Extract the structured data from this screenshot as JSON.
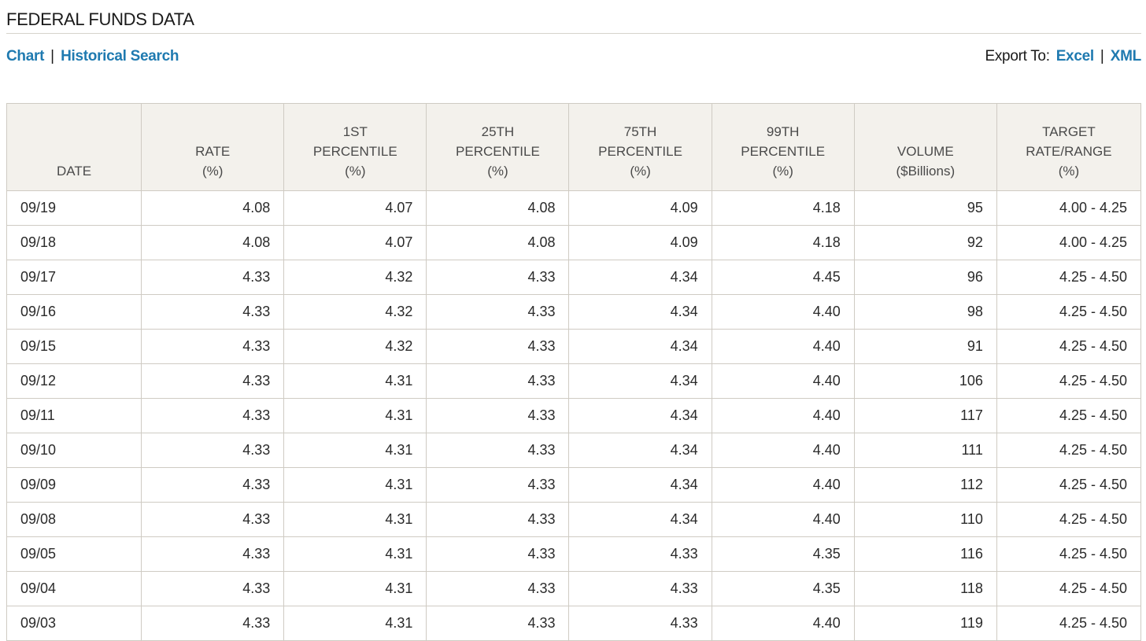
{
  "page": {
    "title": "FEDERAL FUNDS DATA"
  },
  "nav": {
    "chart_label": "Chart",
    "separator": "|",
    "historical_label": "Historical Search"
  },
  "export": {
    "label": "Export To:",
    "excel_label": "Excel",
    "separator": "|",
    "xml_label": "XML"
  },
  "colors": {
    "link": "#1f7ab0",
    "header_bg": "#f3f1ec",
    "border": "#cfcbc3"
  },
  "table": {
    "headers": [
      {
        "line1": "",
        "line2": "",
        "line3": "DATE"
      },
      {
        "line1": "",
        "line2": "RATE",
        "line3": "(%)"
      },
      {
        "line1": "1ST",
        "line2": "PERCENTILE",
        "line3": "(%)"
      },
      {
        "line1": "25TH",
        "line2": "PERCENTILE",
        "line3": "(%)"
      },
      {
        "line1": "75TH",
        "line2": "PERCENTILE",
        "line3": "(%)"
      },
      {
        "line1": "99TH",
        "line2": "PERCENTILE",
        "line3": "(%)"
      },
      {
        "line1": "",
        "line2": "VOLUME",
        "line3": "($Billions)"
      },
      {
        "line1": "TARGET",
        "line2": "RATE/RANGE",
        "line3": "(%)"
      }
    ],
    "rows": [
      [
        "09/19",
        "4.08",
        "4.07",
        "4.08",
        "4.09",
        "4.18",
        "95",
        "4.00 - 4.25"
      ],
      [
        "09/18",
        "4.08",
        "4.07",
        "4.08",
        "4.09",
        "4.18",
        "92",
        "4.00 - 4.25"
      ],
      [
        "09/17",
        "4.33",
        "4.32",
        "4.33",
        "4.34",
        "4.45",
        "96",
        "4.25 - 4.50"
      ],
      [
        "09/16",
        "4.33",
        "4.32",
        "4.33",
        "4.34",
        "4.40",
        "98",
        "4.25 - 4.50"
      ],
      [
        "09/15",
        "4.33",
        "4.32",
        "4.33",
        "4.34",
        "4.40",
        "91",
        "4.25 - 4.50"
      ],
      [
        "09/12",
        "4.33",
        "4.31",
        "4.33",
        "4.34",
        "4.40",
        "106",
        "4.25 - 4.50"
      ],
      [
        "09/11",
        "4.33",
        "4.31",
        "4.33",
        "4.34",
        "4.40",
        "117",
        "4.25 - 4.50"
      ],
      [
        "09/10",
        "4.33",
        "4.31",
        "4.33",
        "4.34",
        "4.40",
        "111",
        "4.25 - 4.50"
      ],
      [
        "09/09",
        "4.33",
        "4.31",
        "4.33",
        "4.34",
        "4.40",
        "112",
        "4.25 - 4.50"
      ],
      [
        "09/08",
        "4.33",
        "4.31",
        "4.33",
        "4.34",
        "4.40",
        "110",
        "4.25 - 4.50"
      ],
      [
        "09/05",
        "4.33",
        "4.31",
        "4.33",
        "4.33",
        "4.35",
        "116",
        "4.25 - 4.50"
      ],
      [
        "09/04",
        "4.33",
        "4.31",
        "4.33",
        "4.33",
        "4.35",
        "118",
        "4.25 - 4.50"
      ],
      [
        "09/03",
        "4.33",
        "4.31",
        "4.33",
        "4.33",
        "4.40",
        "119",
        "4.25 - 4.50"
      ]
    ]
  }
}
